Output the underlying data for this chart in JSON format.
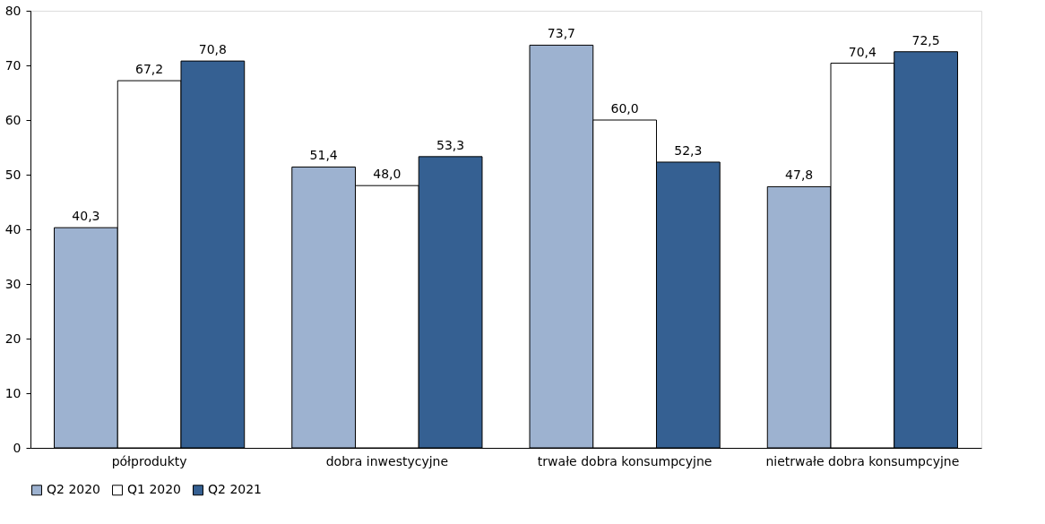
{
  "chart_data": {
    "type": "bar",
    "categories": [
      "półprodukty",
      "dobra inwestycyjne",
      "trwałe dobra konsumpcyjne",
      "nietrwałe dobra konsumpcyjne"
    ],
    "series": [
      {
        "name": "Q2 2020",
        "color": "#9db2d0",
        "values": [
          40.3,
          51.4,
          73.7,
          47.8
        ],
        "value_labels": [
          "40,3",
          "51,4",
          "73,7",
          "47,8"
        ]
      },
      {
        "name": "Q1 2020",
        "color": "#ffffff",
        "values": [
          67.2,
          48.0,
          60.0,
          70.4
        ],
        "value_labels": [
          "67,2",
          "48,0",
          "60,0",
          "70,4"
        ]
      },
      {
        "name": "Q2 2021",
        "color": "#356092",
        "values": [
          70.8,
          53.3,
          52.3,
          72.5
        ],
        "value_labels": [
          "70,8",
          "53,3",
          "52,3",
          "72,5"
        ]
      }
    ],
    "ylim": [
      0,
      80
    ],
    "yticks": [
      0,
      10,
      20,
      30,
      40,
      50,
      60,
      70,
      80
    ],
    "grid": false,
    "legend": "bottom"
  }
}
